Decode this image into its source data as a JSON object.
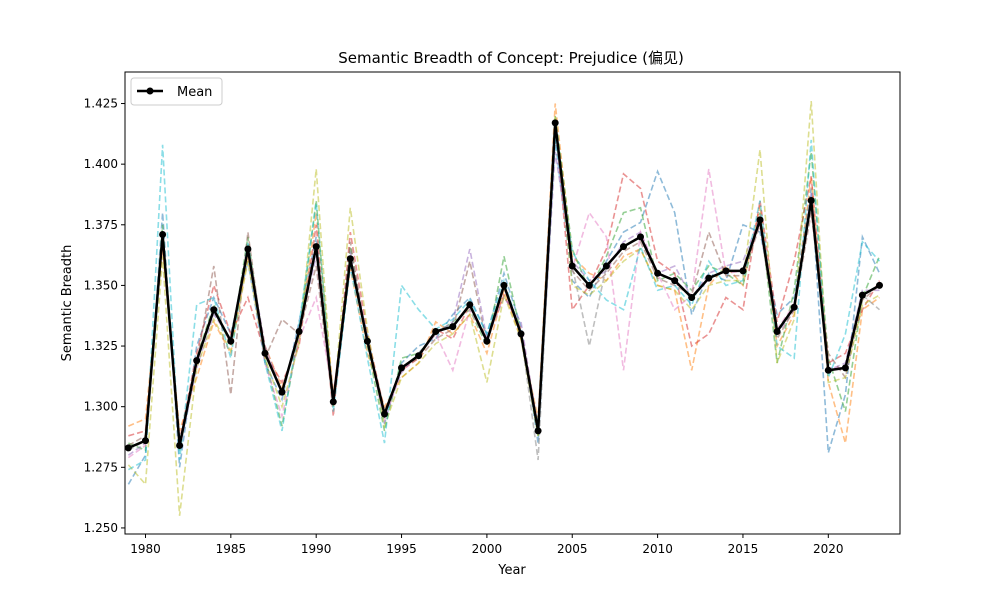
{
  "chart_data": {
    "type": "line",
    "title": "Semantic Breadth of Concept: Prejudice (偏见)",
    "xlabel": "Year",
    "ylabel": "Semantic Breadth",
    "xlim": [
      1978.8,
      2024.2
    ],
    "ylim": [
      1.2475,
      1.438
    ],
    "xticks": [
      1980,
      1985,
      1990,
      1995,
      2000,
      2005,
      2010,
      2015,
      2020
    ],
    "yticks": [
      1.25,
      1.275,
      1.3,
      1.325,
      1.35,
      1.375,
      1.4,
      1.425
    ],
    "ytick_labels": [
      "1.250",
      "1.275",
      "1.300",
      "1.325",
      "1.350",
      "1.375",
      "1.400",
      "1.425"
    ],
    "grid": false,
    "legend": {
      "placement": "top-left",
      "entries": [
        "Mean"
      ]
    },
    "x": [
      1979,
      1980,
      1981,
      1982,
      1983,
      1984,
      1985,
      1986,
      1987,
      1988,
      1989,
      1990,
      1991,
      1992,
      1993,
      1994,
      1995,
      1996,
      1997,
      1998,
      1999,
      2000,
      2001,
      2002,
      2003,
      2004,
      2005,
      2006,
      2007,
      2008,
      2009,
      2010,
      2011,
      2012,
      2013,
      2014,
      2015,
      2016,
      2017,
      2018,
      2019,
      2020,
      2021,
      2022,
      2023
    ],
    "mean": {
      "name": "Mean",
      "color": "#000000",
      "values": [
        1.283,
        1.286,
        1.371,
        1.284,
        1.319,
        1.34,
        1.327,
        1.365,
        1.322,
        1.306,
        1.331,
        1.366,
        1.302,
        1.361,
        1.327,
        1.297,
        1.316,
        1.321,
        1.331,
        1.333,
        1.342,
        1.327,
        1.35,
        1.33,
        1.29,
        1.417,
        1.358,
        1.35,
        1.358,
        1.366,
        1.37,
        1.355,
        1.352,
        1.345,
        1.353,
        1.356,
        1.356,
        1.377,
        1.331,
        1.341,
        1.385,
        1.315,
        1.316,
        1.346,
        1.35
      ]
    },
    "series": [
      {
        "color": "#1f77b4",
        "values": [
          1.268,
          1.28,
          1.38,
          1.275,
          1.325,
          1.345,
          1.33,
          1.36,
          1.318,
          1.303,
          1.335,
          1.37,
          1.3,
          1.358,
          1.33,
          1.293,
          1.318,
          1.325,
          1.328,
          1.338,
          1.345,
          1.33,
          1.355,
          1.333,
          1.285,
          1.41,
          1.352,
          1.345,
          1.36,
          1.372,
          1.376,
          1.397,
          1.38,
          1.338,
          1.355,
          1.352,
          1.375,
          1.372,
          1.338,
          1.345,
          1.39,
          1.281,
          1.305,
          1.37,
          1.355
        ]
      },
      {
        "color": "#ff7f0e",
        "values": [
          1.292,
          1.295,
          1.365,
          1.29,
          1.312,
          1.335,
          1.322,
          1.362,
          1.325,
          1.308,
          1.328,
          1.38,
          1.305,
          1.357,
          1.322,
          1.3,
          1.312,
          1.318,
          1.335,
          1.33,
          1.338,
          1.322,
          1.348,
          1.328,
          1.295,
          1.425,
          1.362,
          1.355,
          1.352,
          1.362,
          1.365,
          1.35,
          1.348,
          1.315,
          1.35,
          1.358,
          1.35,
          1.383,
          1.325,
          1.338,
          1.395,
          1.31,
          1.285,
          1.34,
          1.345
        ]
      },
      {
        "color": "#2ca02c",
        "values": [
          1.285,
          1.282,
          1.375,
          1.282,
          1.32,
          1.342,
          1.325,
          1.37,
          1.32,
          1.292,
          1.33,
          1.385,
          1.3,
          1.366,
          1.325,
          1.29,
          1.32,
          1.322,
          1.33,
          1.335,
          1.34,
          1.325,
          1.362,
          1.33,
          1.288,
          1.42,
          1.365,
          1.348,
          1.362,
          1.38,
          1.382,
          1.352,
          1.355,
          1.348,
          1.358,
          1.355,
          1.35,
          1.38,
          1.318,
          1.348,
          1.405,
          1.32,
          1.298,
          1.345,
          1.362
        ]
      },
      {
        "color": "#d62728",
        "values": [
          1.288,
          1.29,
          1.368,
          1.286,
          1.322,
          1.35,
          1.33,
          1.345,
          1.322,
          1.31,
          1.325,
          1.375,
          1.296,
          1.372,
          1.33,
          1.298,
          1.315,
          1.32,
          1.332,
          1.328,
          1.342,
          1.328,
          1.346,
          1.332,
          1.292,
          1.418,
          1.34,
          1.35,
          1.365,
          1.396,
          1.39,
          1.36,
          1.355,
          1.325,
          1.33,
          1.345,
          1.34,
          1.385,
          1.335,
          1.36,
          1.395,
          1.318,
          1.322,
          1.34,
          1.352
        ]
      },
      {
        "color": "#9467bd",
        "values": [
          1.28,
          1.285,
          1.372,
          1.283,
          1.316,
          1.338,
          1.328,
          1.366,
          1.325,
          1.306,
          1.332,
          1.362,
          1.302,
          1.364,
          1.328,
          1.296,
          1.314,
          1.322,
          1.33,
          1.335,
          1.365,
          1.328,
          1.345,
          1.335,
          1.29,
          1.405,
          1.36,
          1.352,
          1.356,
          1.368,
          1.372,
          1.355,
          1.358,
          1.345,
          1.355,
          1.358,
          1.36,
          1.378,
          1.33,
          1.34,
          1.388,
          1.315,
          1.318,
          1.348,
          1.348
        ]
      },
      {
        "color": "#8c564b",
        "values": [
          1.284,
          1.288,
          1.37,
          1.285,
          1.318,
          1.358,
          1.305,
          1.372,
          1.32,
          1.336,
          1.33,
          1.358,
          1.3,
          1.368,
          1.326,
          1.298,
          1.316,
          1.32,
          1.328,
          1.332,
          1.36,
          1.326,
          1.35,
          1.33,
          1.29,
          1.415,
          1.356,
          1.348,
          1.355,
          1.364,
          1.368,
          1.353,
          1.35,
          1.346,
          1.372,
          1.354,
          1.354,
          1.375,
          1.328,
          1.34,
          1.38,
          1.322,
          1.312,
          1.344,
          1.35
        ]
      },
      {
        "color": "#e377c2",
        "values": [
          1.279,
          1.284,
          1.369,
          1.282,
          1.32,
          1.34,
          1.326,
          1.364,
          1.318,
          1.296,
          1.328,
          1.345,
          1.305,
          1.36,
          1.327,
          1.294,
          1.316,
          1.321,
          1.33,
          1.315,
          1.34,
          1.327,
          1.35,
          1.33,
          1.29,
          1.416,
          1.357,
          1.38,
          1.37,
          1.315,
          1.372,
          1.355,
          1.34,
          1.346,
          1.398,
          1.355,
          1.356,
          1.376,
          1.332,
          1.342,
          1.384,
          1.316,
          1.316,
          1.346,
          1.35
        ]
      },
      {
        "color": "#7f7f7f",
        "values": [
          1.282,
          1.286,
          1.371,
          1.284,
          1.319,
          1.339,
          1.327,
          1.365,
          1.322,
          1.306,
          1.331,
          1.366,
          1.302,
          1.361,
          1.327,
          1.297,
          1.316,
          1.321,
          1.331,
          1.333,
          1.342,
          1.327,
          1.35,
          1.33,
          1.278,
          1.417,
          1.358,
          1.325,
          1.358,
          1.366,
          1.37,
          1.355,
          1.352,
          1.345,
          1.353,
          1.356,
          1.356,
          1.377,
          1.331,
          1.341,
          1.385,
          1.315,
          1.316,
          1.346,
          1.34
        ]
      },
      {
        "color": "#bcbd22",
        "values": [
          1.276,
          1.268,
          1.362,
          1.255,
          1.316,
          1.336,
          1.323,
          1.36,
          1.32,
          1.3,
          1.326,
          1.398,
          1.3,
          1.382,
          1.332,
          1.292,
          1.312,
          1.318,
          1.326,
          1.33,
          1.338,
          1.31,
          1.346,
          1.328,
          1.288,
          1.42,
          1.35,
          1.346,
          1.352,
          1.36,
          1.365,
          1.35,
          1.348,
          1.34,
          1.35,
          1.352,
          1.352,
          1.406,
          1.318,
          1.336,
          1.426,
          1.31,
          1.312,
          1.342,
          1.346
        ]
      },
      {
        "color": "#17becf",
        "values": [
          1.274,
          1.278,
          1.408,
          1.278,
          1.342,
          1.345,
          1.32,
          1.368,
          1.318,
          1.29,
          1.334,
          1.384,
          1.298,
          1.358,
          1.32,
          1.285,
          1.35,
          1.34,
          1.332,
          1.336,
          1.344,
          1.33,
          1.352,
          1.33,
          1.292,
          1.412,
          1.364,
          1.352,
          1.344,
          1.34,
          1.366,
          1.348,
          1.35,
          1.342,
          1.36,
          1.35,
          1.352,
          1.385,
          1.325,
          1.32,
          1.41,
          1.312,
          1.33,
          1.368,
          1.36
        ]
      }
    ]
  }
}
